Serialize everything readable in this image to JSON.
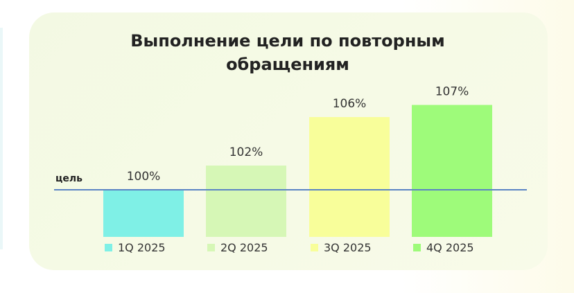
{
  "colors": {
    "card_bg": "#f4f9e4",
    "goal_line": "#5b84c4",
    "text": "#333333"
  },
  "chart_data": {
    "type": "bar",
    "title": "Выполнение цели по повторным обращениям",
    "categories": [
      "1Q 2025",
      "2Q 2025",
      "3Q 2025",
      "4Q 2025"
    ],
    "values": [
      100,
      102,
      106,
      107
    ],
    "value_labels": [
      "100%",
      "102%",
      "106%",
      "107%"
    ],
    "bar_colors": [
      "#7ff0e6",
      "#d6f7b6",
      "#f8fe9a",
      "#9efb7a"
    ],
    "goal": {
      "label": "цель",
      "value": 100
    },
    "legend": {
      "placement": "bottom"
    },
    "grid": false
  }
}
